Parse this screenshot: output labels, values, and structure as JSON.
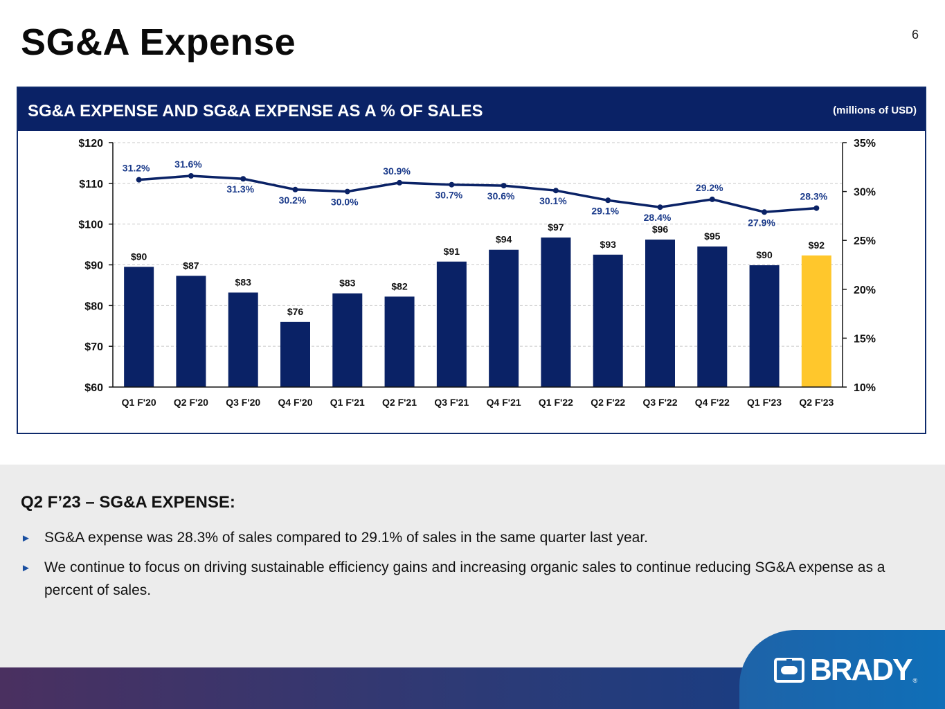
{
  "page": {
    "title": "SG&A Expense",
    "number": "6"
  },
  "chart_header": {
    "title": "SG&A EXPENSE AND SG&A EXPENSE AS A % OF SALES",
    "units": "(millions of USD)"
  },
  "chart_data": {
    "type": "bar",
    "categories": [
      "Q1 F'20",
      "Q2 F'20",
      "Q3 F'20",
      "Q4 F'20",
      "Q1 F'21",
      "Q2 F'21",
      "Q3 F'21",
      "Q4 F'21",
      "Q1 F'22",
      "Q2 F'22",
      "Q3 F'22",
      "Q4 F'22",
      "Q1 F'23",
      "Q2 F'23"
    ],
    "series": [
      {
        "name": "SG&A expense",
        "type": "bar",
        "axis": "left",
        "values": [
          89.5,
          87.3,
          83.2,
          76.0,
          83.0,
          82.2,
          90.8,
          93.7,
          96.7,
          92.5,
          96.2,
          94.5,
          89.9,
          92.3
        ],
        "labels": [
          "$90",
          "$87",
          "$83",
          "$76",
          "$83",
          "$82",
          "$91",
          "$94",
          "$97",
          "$93",
          "$96",
          "$95",
          "$90",
          "$92"
        ],
        "color": "#0a2266",
        "highlight_index": 13,
        "highlight_color": "#ffc72c"
      },
      {
        "name": "SG&A expense as % of sales",
        "type": "line",
        "axis": "right",
        "values": [
          31.2,
          31.6,
          31.3,
          30.2,
          30.0,
          30.9,
          30.7,
          30.6,
          30.1,
          29.1,
          28.4,
          29.2,
          27.9,
          28.3
        ],
        "labels": [
          "31.2%",
          "31.6%",
          "31.3%",
          "30.2%",
          "30.0%",
          "30.9%",
          "30.7%",
          "30.6%",
          "30.1%",
          "29.1%",
          "28.4%",
          "29.2%",
          "27.9%",
          "28.3%"
        ],
        "color": "#0a2266"
      }
    ],
    "y_left": {
      "range": [
        60,
        120
      ],
      "ticks": [
        60,
        70,
        80,
        90,
        100,
        110,
        120
      ],
      "tick_labels": [
        "$60",
        "$70",
        "$80",
        "$90",
        "$100",
        "$110",
        "$120"
      ]
    },
    "y_right": {
      "range": [
        10,
        35
      ],
      "ticks": [
        10,
        15,
        20,
        25,
        30,
        35
      ],
      "tick_labels": [
        "10%",
        "15%",
        "20%",
        "25%",
        "30%",
        "35%"
      ]
    },
    "grid": true,
    "legend": "none"
  },
  "commentary": {
    "heading": "Q2 F’23 – SG&A EXPENSE:",
    "bullets": [
      "SG&A expense was 28.3% of sales compared to 29.1% of sales in the same quarter last year.",
      "We continue to focus on driving sustainable efficiency gains and increasing organic sales to continue reducing SG&A expense as a percent of sales."
    ],
    "bullet_icon": "right-triangle-icon"
  },
  "brand": {
    "logo_text": "BRADY",
    "logo_icon": "brady-mark-icon"
  }
}
